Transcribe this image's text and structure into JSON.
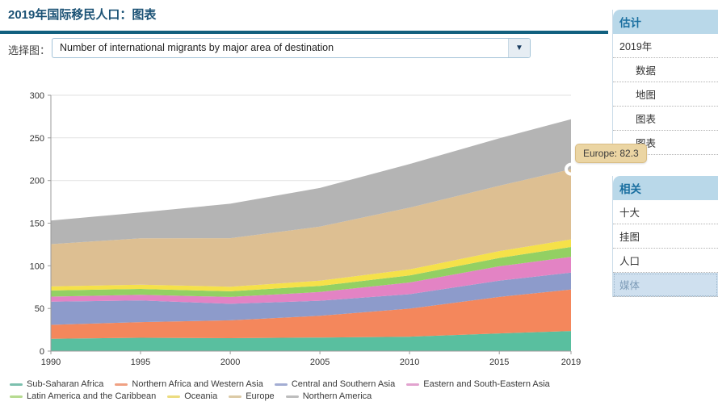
{
  "page": {
    "title": "2019年国际移民人口：图表"
  },
  "controls": {
    "label": "选择图：",
    "select_value": "Number of international migrants by major area of destination",
    "dropdown_icon": "▼"
  },
  "tooltip": {
    "text": "Europe: 82.3"
  },
  "sidebar": {
    "estimates": {
      "header": "估计",
      "rows": [
        "2019年",
        "数据",
        "地图",
        "图表",
        "图表"
      ]
    },
    "related": {
      "header": "相关",
      "rows": [
        "十大",
        "挂图",
        "人口",
        "媒体"
      ]
    }
  },
  "chart_data": {
    "type": "area",
    "stacked": true,
    "title": "",
    "xlabel": "",
    "ylabel": "",
    "x": [
      1990,
      1995,
      2000,
      2005,
      2010,
      2015,
      2019
    ],
    "x_tick_labels": [
      "1990",
      "1995",
      "2000",
      "2005",
      "2010",
      "2015",
      "2019"
    ],
    "ylim": [
      0,
      300
    ],
    "y_ticks": [
      0,
      50,
      100,
      150,
      200,
      250,
      300
    ],
    "grid": true,
    "legend_position": "bottom",
    "units": "millions of migrants",
    "series": [
      {
        "name": "Sub-Saharan Africa",
        "color": "#59bf9f",
        "legend_color": "#7cc0ae",
        "values": [
          14.4,
          15.6,
          15.1,
          15.9,
          16.8,
          20.7,
          23.6
        ]
      },
      {
        "name": "Northern Africa and Western Asia",
        "color": "#f4875c",
        "legend_color": "#f0a183",
        "values": [
          16.4,
          18.4,
          21.0,
          25.5,
          33.0,
          42.8,
          48.6
        ]
      },
      {
        "name": "Central and Southern Asia",
        "color": "#8d9bcb",
        "legend_color": "#a3add3",
        "values": [
          27.2,
          25.4,
          19.4,
          17.7,
          16.9,
          19.1,
          19.8
        ]
      },
      {
        "name": "Eastern and South-Eastern Asia",
        "color": "#e383c4",
        "legend_color": "#e2a3cf",
        "values": [
          5.9,
          6.6,
          8.0,
          10.2,
          13.7,
          16.9,
          18.4
        ]
      },
      {
        "name": "Latin America and the Caribbean",
        "color": "#93d063",
        "legend_color": "#b6db90",
        "values": [
          7.2,
          6.9,
          6.6,
          7.2,
          8.3,
          9.7,
          11.7
        ]
      },
      {
        "name": "Oceania",
        "color": "#f5e149",
        "legend_color": "#ecdc7f",
        "values": [
          4.7,
          5.0,
          5.4,
          6.0,
          7.1,
          8.1,
          8.9
        ]
      },
      {
        "name": "Europe",
        "color": "#ddbf92",
        "legend_color": "#dccaa6",
        "values": [
          49.6,
          54.3,
          56.9,
          63.4,
          72.4,
          76.6,
          82.3
        ]
      },
      {
        "name": "Northern America",
        "color": "#b4b4b4",
        "legend_color": "#bdbdbd",
        "values": [
          27.6,
          30.4,
          40.4,
          45.4,
          51.2,
          55.6,
          58.6
        ]
      }
    ],
    "marker": {
      "series": "Europe",
      "x": 2019,
      "value": 82.3,
      "label": "Europe: 82.3"
    }
  }
}
